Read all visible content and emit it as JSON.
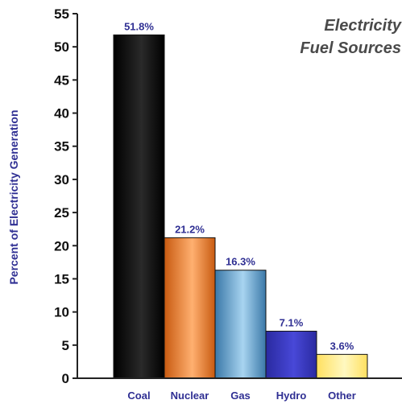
{
  "chart_data": {
    "type": "bar",
    "title": [
      "Electricity",
      "Fuel Sources"
    ],
    "ylabel": "Percent of Electricity Generation",
    "xlabel": "",
    "ylim": [
      0,
      55
    ],
    "yticks": [
      0,
      5,
      10,
      15,
      20,
      25,
      30,
      35,
      40,
      45,
      50,
      55
    ],
    "categories": [
      "Coal",
      "Nuclear",
      "Gas",
      "Hydro",
      "Other"
    ],
    "values": [
      51.8,
      21.2,
      16.3,
      7.1,
      3.6
    ],
    "data_labels": [
      "51.8%",
      "21.2%",
      "16.3%",
      "7.1%",
      "3.6%"
    ],
    "colors": {
      "Coal": [
        "#000000",
        "#2a2a2a"
      ],
      "Nuclear": [
        "#c85a10",
        "#ffb070"
      ],
      "Gas": [
        "#3a78a8",
        "#a8d4f0"
      ],
      "Hydro": [
        "#2a2aa0",
        "#4848d8"
      ],
      "Other": [
        "#ffe060",
        "#fff8c0"
      ]
    },
    "grid": false,
    "legend": "none"
  }
}
